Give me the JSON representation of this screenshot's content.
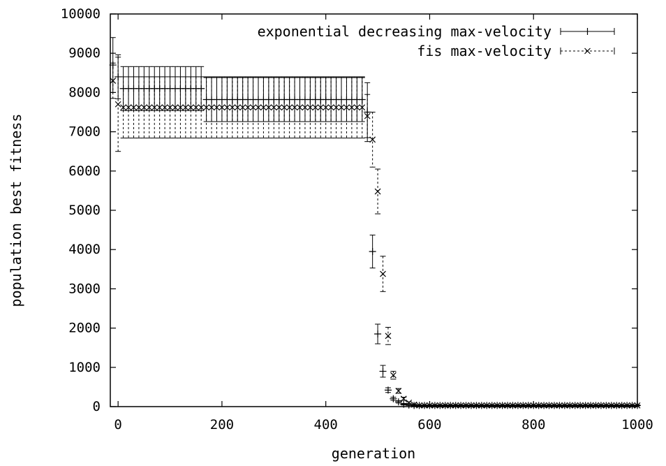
{
  "chart_data": {
    "type": "line",
    "title": "",
    "xlabel": "generation",
    "ylabel": "population best fitness",
    "xlim": [
      -15,
      1000
    ],
    "ylim": [
      0,
      10000
    ],
    "xticks": [
      0,
      200,
      400,
      600,
      800,
      1000
    ],
    "yticks": [
      0,
      1000,
      2000,
      3000,
      4000,
      5000,
      6000,
      7000,
      8000,
      9000,
      10000
    ],
    "grid": false,
    "legend_position": "top-right",
    "series": [
      {
        "name": "exponential decreasing max-velocity",
        "marker": "plus",
        "line_style": "solid",
        "x": [
          -10,
          0,
          10,
          20,
          30,
          40,
          50,
          60,
          70,
          80,
          90,
          100,
          110,
          120,
          130,
          140,
          150,
          160,
          170,
          180,
          190,
          200,
          210,
          220,
          230,
          240,
          250,
          260,
          270,
          280,
          290,
          300,
          310,
          320,
          330,
          340,
          350,
          360,
          370,
          380,
          390,
          400,
          410,
          420,
          430,
          440,
          450,
          460,
          470,
          480,
          490,
          500,
          510,
          520,
          530,
          540,
          550,
          560,
          570,
          580,
          590,
          600,
          610,
          620,
          630,
          640,
          650,
          660,
          670,
          680,
          690,
          700,
          710,
          720,
          730,
          740,
          750,
          760,
          770,
          780,
          790,
          800,
          810,
          820,
          830,
          840,
          850,
          860,
          870,
          880,
          890,
          900,
          910,
          920,
          930,
          940,
          950,
          960,
          970,
          980,
          990,
          1000
        ],
        "y": [
          8700,
          8400,
          8100,
          8100,
          8100,
          8100,
          8100,
          8100,
          8100,
          8100,
          8100,
          8100,
          8100,
          8100,
          8100,
          8100,
          8100,
          8100,
          7820,
          7820,
          7820,
          7820,
          7820,
          7820,
          7820,
          7820,
          7820,
          7820,
          7820,
          7820,
          7820,
          7820,
          7820,
          7820,
          7820,
          7820,
          7820,
          7820,
          7820,
          7820,
          7820,
          7820,
          7820,
          7820,
          7820,
          7820,
          7820,
          7820,
          7820,
          7500,
          3950,
          1850,
          900,
          420,
          200,
          120,
          60,
          40,
          30,
          30,
          30,
          30,
          30,
          30,
          30,
          30,
          30,
          30,
          30,
          30,
          30,
          30,
          30,
          30,
          30,
          30,
          30,
          30,
          30,
          30,
          30,
          30,
          30,
          30,
          30,
          30,
          30,
          30,
          30,
          30,
          30,
          30,
          30,
          30,
          30,
          30,
          30,
          30,
          30,
          30,
          30,
          30
        ],
        "err": [
          700,
          560,
          560,
          560,
          560,
          560,
          560,
          560,
          560,
          560,
          560,
          560,
          560,
          560,
          560,
          560,
          560,
          560,
          560,
          560,
          560,
          560,
          560,
          560,
          560,
          560,
          560,
          560,
          560,
          560,
          560,
          560,
          560,
          560,
          560,
          560,
          560,
          560,
          560,
          560,
          560,
          560,
          560,
          560,
          560,
          560,
          560,
          560,
          560,
          750,
          420,
          250,
          150,
          60,
          40,
          30,
          20,
          10,
          10,
          10,
          10,
          10,
          10,
          10,
          10,
          10,
          10,
          10,
          10,
          10,
          10,
          10,
          10,
          10,
          10,
          10,
          10,
          10,
          10,
          10,
          10,
          10,
          10,
          10,
          10,
          10,
          10,
          10,
          10,
          10,
          10,
          10,
          10,
          10,
          10,
          10,
          10,
          10,
          10,
          10,
          10,
          10
        ]
      },
      {
        "name": "fis  max-velocity",
        "marker": "x",
        "line_style": "dashed",
        "x": [
          -10,
          0,
          10,
          20,
          30,
          40,
          50,
          60,
          70,
          80,
          90,
          100,
          110,
          120,
          130,
          140,
          150,
          160,
          170,
          180,
          190,
          200,
          210,
          220,
          230,
          240,
          250,
          260,
          270,
          280,
          290,
          300,
          310,
          320,
          330,
          340,
          350,
          360,
          370,
          380,
          390,
          400,
          410,
          420,
          430,
          440,
          450,
          460,
          470,
          480,
          490,
          500,
          510,
          520,
          530,
          540,
          550,
          560,
          570,
          580,
          590,
          600,
          610,
          620,
          630,
          640,
          650,
          660,
          670,
          680,
          690,
          700,
          710,
          720,
          730,
          740,
          750,
          760,
          770,
          780,
          790,
          800,
          810,
          820,
          830,
          840,
          850,
          860,
          870,
          880,
          890,
          900,
          910,
          920,
          930,
          940,
          950,
          960,
          970,
          980,
          990,
          1000
        ],
        "y": [
          8300,
          7700,
          7620,
          7620,
          7620,
          7620,
          7620,
          7620,
          7620,
          7620,
          7620,
          7620,
          7620,
          7620,
          7620,
          7620,
          7620,
          7620,
          7620,
          7620,
          7620,
          7620,
          7620,
          7620,
          7620,
          7620,
          7620,
          7620,
          7620,
          7620,
          7620,
          7620,
          7620,
          7620,
          7620,
          7620,
          7620,
          7620,
          7620,
          7620,
          7620,
          7620,
          7620,
          7620,
          7620,
          7620,
          7620,
          7620,
          7620,
          7400,
          6800,
          5480,
          3380,
          1800,
          800,
          400,
          200,
          100,
          50,
          30,
          30,
          30,
          30,
          30,
          30,
          30,
          30,
          30,
          30,
          30,
          30,
          30,
          30,
          30,
          30,
          30,
          30,
          30,
          30,
          30,
          30,
          30,
          30,
          30,
          30,
          30,
          30,
          30,
          30,
          30,
          30,
          30,
          30,
          30,
          30,
          30,
          30,
          30,
          30,
          30,
          30,
          30
        ],
        "err": [
          450,
          1200,
          780,
          780,
          780,
          780,
          780,
          780,
          780,
          780,
          780,
          780,
          780,
          780,
          780,
          780,
          780,
          780,
          780,
          780,
          780,
          780,
          780,
          780,
          780,
          780,
          780,
          780,
          780,
          780,
          780,
          780,
          780,
          780,
          780,
          780,
          780,
          780,
          780,
          780,
          780,
          780,
          780,
          780,
          780,
          780,
          780,
          780,
          780,
          550,
          700,
          570,
          450,
          220,
          100,
          60,
          40,
          20,
          10,
          10,
          10,
          10,
          10,
          10,
          10,
          10,
          10,
          10,
          10,
          10,
          10,
          10,
          10,
          10,
          10,
          10,
          10,
          10,
          10,
          10,
          10,
          10,
          10,
          10,
          10,
          10,
          10,
          10,
          10,
          10,
          10,
          10,
          10,
          10,
          10,
          10,
          10,
          10,
          10,
          10,
          10,
          10
        ]
      }
    ]
  }
}
